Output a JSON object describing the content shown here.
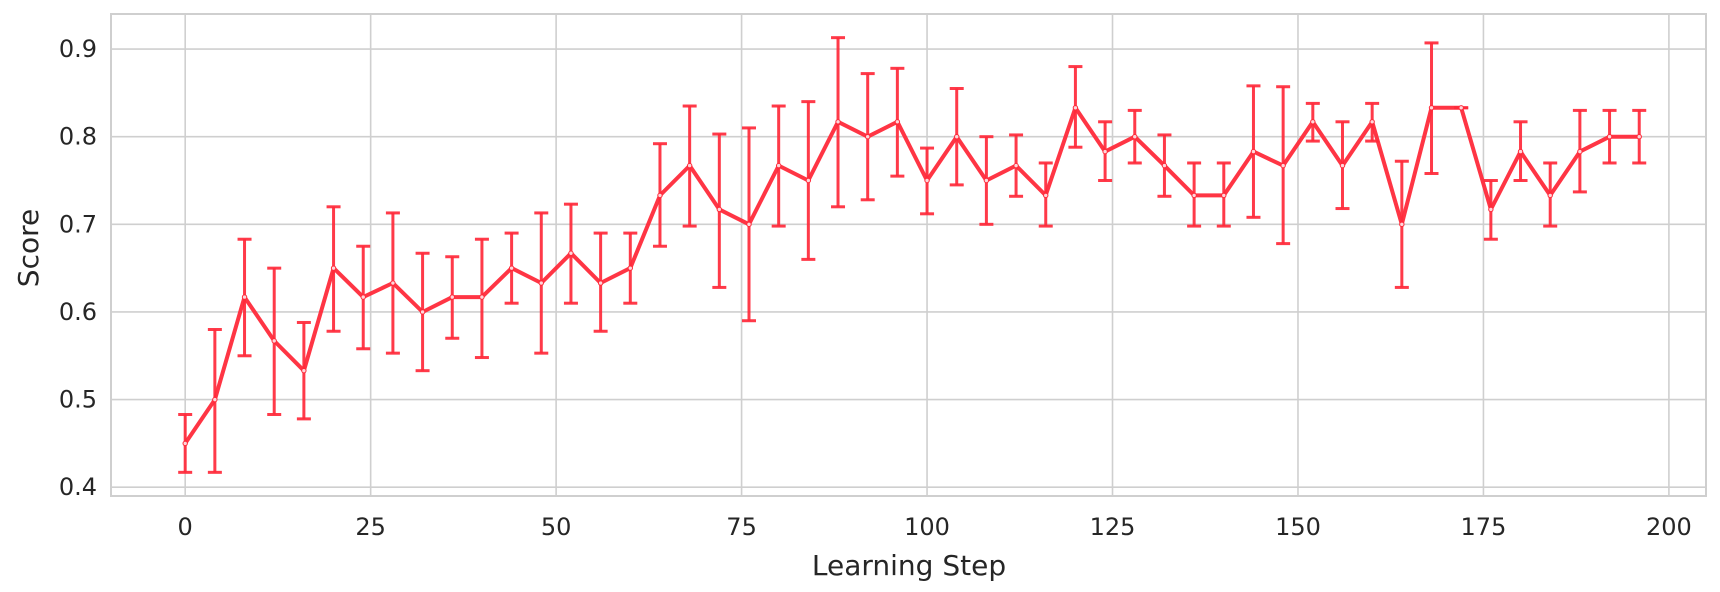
{
  "chart_data": {
    "type": "line",
    "title": "",
    "xlabel": "Learning Step",
    "ylabel": "Score",
    "xlim": [
      -10,
      205
    ],
    "ylim": [
      0.39,
      0.94
    ],
    "xticks": [
      0,
      25,
      50,
      75,
      100,
      125,
      150,
      175,
      200
    ],
    "xtick_labels": [
      "0",
      "25",
      "50",
      "75",
      "100",
      "125",
      "150",
      "175",
      "200"
    ],
    "yticks": [
      0.4,
      0.5,
      0.6,
      0.7,
      0.8,
      0.9
    ],
    "ytick_labels": [
      "0.4",
      "0.5",
      "0.6",
      "0.7",
      "0.8",
      "0.9"
    ],
    "grid": true,
    "legend": false,
    "colors": {
      "line": "#ff2a3a",
      "grid": "#cfcfcf",
      "frame": "#cfcfcf"
    },
    "series": [
      {
        "x": [
          0,
          4,
          8,
          12,
          16,
          20,
          24,
          28,
          32,
          36,
          40,
          44,
          48,
          52,
          56,
          60,
          64,
          68,
          72,
          76,
          80,
          84,
          88,
          92,
          96,
          100,
          104,
          108,
          112,
          116,
          120,
          124,
          128,
          132,
          136,
          140,
          144,
          148,
          152,
          156,
          160,
          164,
          168,
          172,
          176,
          180,
          184,
          188,
          192,
          196
        ],
        "y": [
          0.45,
          0.5,
          0.617,
          0.567,
          0.533,
          0.65,
          0.617,
          0.633,
          0.6,
          0.617,
          0.617,
          0.65,
          0.633,
          0.667,
          0.633,
          0.65,
          0.733,
          0.767,
          0.717,
          0.7,
          0.767,
          0.75,
          0.817,
          0.8,
          0.817,
          0.75,
          0.8,
          0.75,
          0.767,
          0.733,
          0.833,
          0.783,
          0.8,
          0.767,
          0.733,
          0.733,
          0.783,
          0.767,
          0.817,
          0.767,
          0.817,
          0.7,
          0.833,
          0.833,
          0.717,
          0.783,
          0.733,
          0.783,
          0.8,
          0.8
        ],
        "err_low": [
          0.417,
          0.417,
          0.55,
          0.483,
          0.478,
          0.578,
          0.558,
          0.553,
          0.533,
          0.57,
          0.548,
          0.61,
          0.553,
          0.61,
          0.578,
          0.61,
          0.675,
          0.698,
          0.628,
          0.59,
          0.698,
          0.66,
          0.72,
          0.728,
          0.755,
          0.712,
          0.745,
          0.7,
          0.732,
          0.698,
          0.788,
          0.75,
          0.77,
          0.732,
          0.698,
          0.698,
          0.708,
          0.678,
          0.795,
          0.718,
          0.795,
          0.628,
          0.758,
          0.833,
          0.683,
          0.75,
          0.698,
          0.737,
          0.77,
          0.77
        ],
        "err_high": [
          0.483,
          0.58,
          0.683,
          0.65,
          0.588,
          0.72,
          0.675,
          0.713,
          0.667,
          0.663,
          0.683,
          0.69,
          0.713,
          0.723,
          0.69,
          0.69,
          0.792,
          0.835,
          0.803,
          0.81,
          0.835,
          0.84,
          0.913,
          0.872,
          0.878,
          0.787,
          0.855,
          0.8,
          0.802,
          0.77,
          0.88,
          0.817,
          0.83,
          0.802,
          0.77,
          0.77,
          0.858,
          0.857,
          0.838,
          0.817,
          0.838,
          0.772,
          0.907,
          0.833,
          0.75,
          0.817,
          0.77,
          0.83,
          0.83,
          0.83
        ]
      }
    ]
  }
}
